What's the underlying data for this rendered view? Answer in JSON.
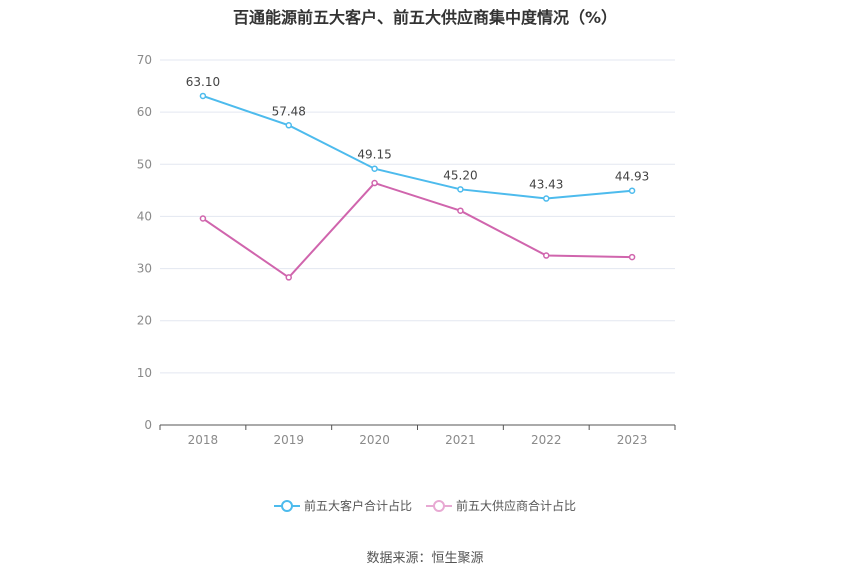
{
  "title": "百通能源前五大客户、前五大供应商集中度情况（%）",
  "source": "数据来源：恒生聚源",
  "chart_data": {
    "type": "line",
    "title": "百通能源前五大客户、前五大供应商集中度情况（%）",
    "x": [
      "2018",
      "2019",
      "2020",
      "2021",
      "2022",
      "2023"
    ],
    "ylim": [
      0,
      70
    ],
    "yticks": [
      0,
      10,
      20,
      30,
      40,
      50,
      60,
      70
    ],
    "grid": true,
    "legend_position": "bottom",
    "series": [
      {
        "name": "前五大客户合计占比",
        "color": "#4dbbed",
        "values": [
          63.1,
          57.48,
          49.15,
          45.2,
          43.43,
          44.93
        ],
        "labels": [
          "63.10",
          "57.48",
          "49.15",
          "45.20",
          "43.43",
          "44.93"
        ]
      },
      {
        "name": "前五大供应商合计占比",
        "color": "#d065ad",
        "values": [
          39.6,
          28.3,
          46.4,
          41.1,
          32.5,
          32.2
        ]
      }
    ]
  }
}
